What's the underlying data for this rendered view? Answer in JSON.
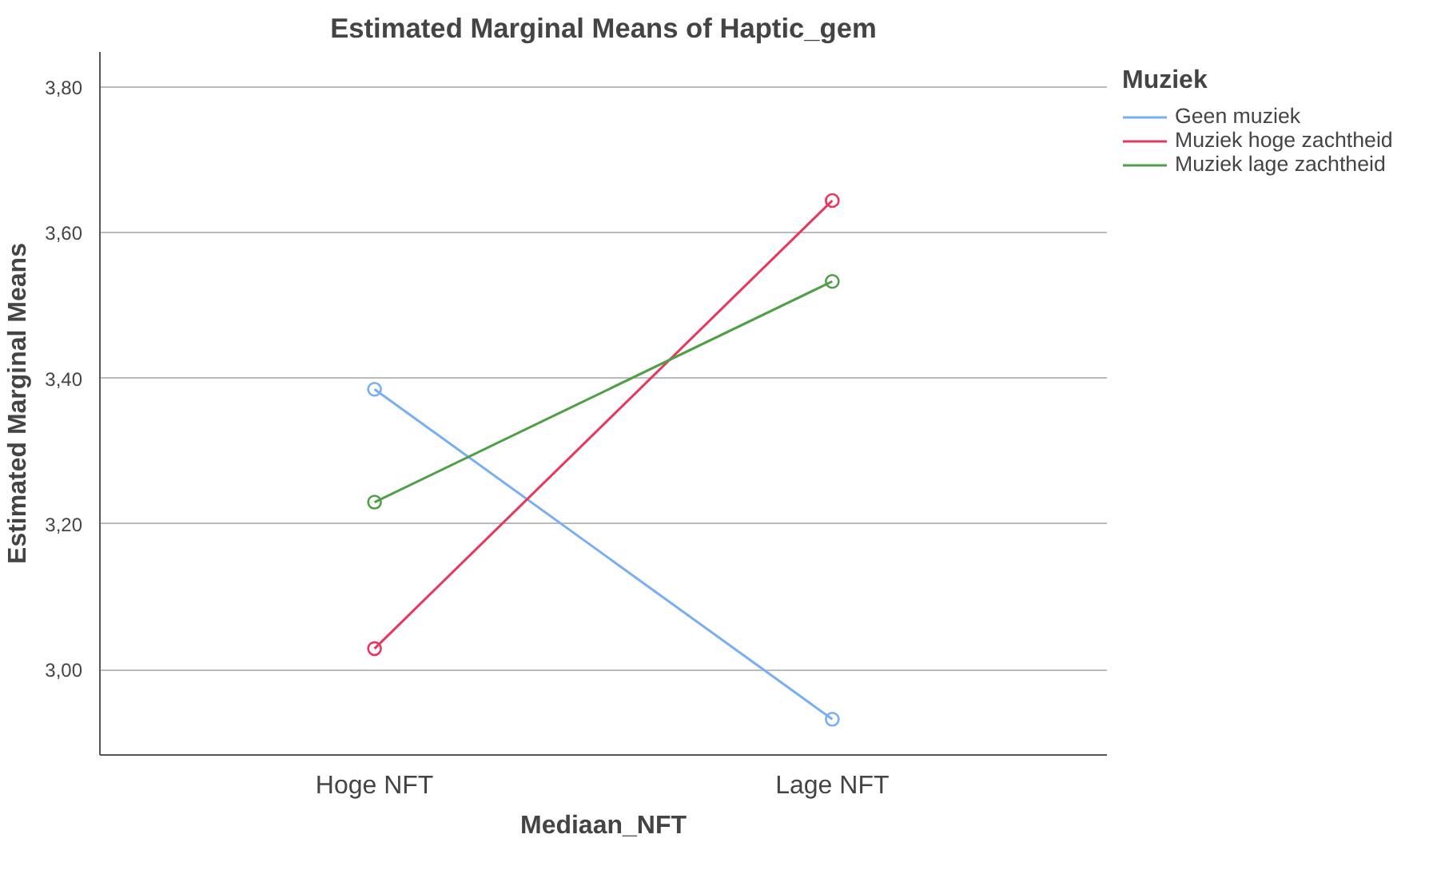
{
  "chart_data": {
    "type": "line",
    "title": "Estimated Marginal Means of Haptic_gem",
    "xlabel": "Mediaan_NFT",
    "ylabel": "Estimated Marginal Means",
    "legend_title": "Muziek",
    "categories": [
      "Hoge NFT",
      "Lage NFT"
    ],
    "series": [
      {
        "name": "Geen muziek",
        "color": "#79aef2",
        "values": [
          3.385,
          2.932
        ]
      },
      {
        "name": "Muziek hoge zachtheid",
        "color": "#e8375f",
        "values": [
          3.029,
          3.644
        ]
      },
      {
        "name": "Muziek lage zachtheid",
        "color": "#4f9f47",
        "values": [
          3.23,
          3.533
        ]
      }
    ],
    "ylim": [
      2.883,
      3.848
    ],
    "yticks": [
      {
        "value": 3.0,
        "label": "3,00"
      },
      {
        "value": 3.2,
        "label": "3,20"
      },
      {
        "value": 3.4,
        "label": "3,40"
      },
      {
        "value": 3.6,
        "label": "3,60"
      },
      {
        "value": 3.8,
        "label": "3,80"
      }
    ],
    "grid": "y",
    "legend": "top right",
    "marker": "circle",
    "line_style": "solid"
  }
}
